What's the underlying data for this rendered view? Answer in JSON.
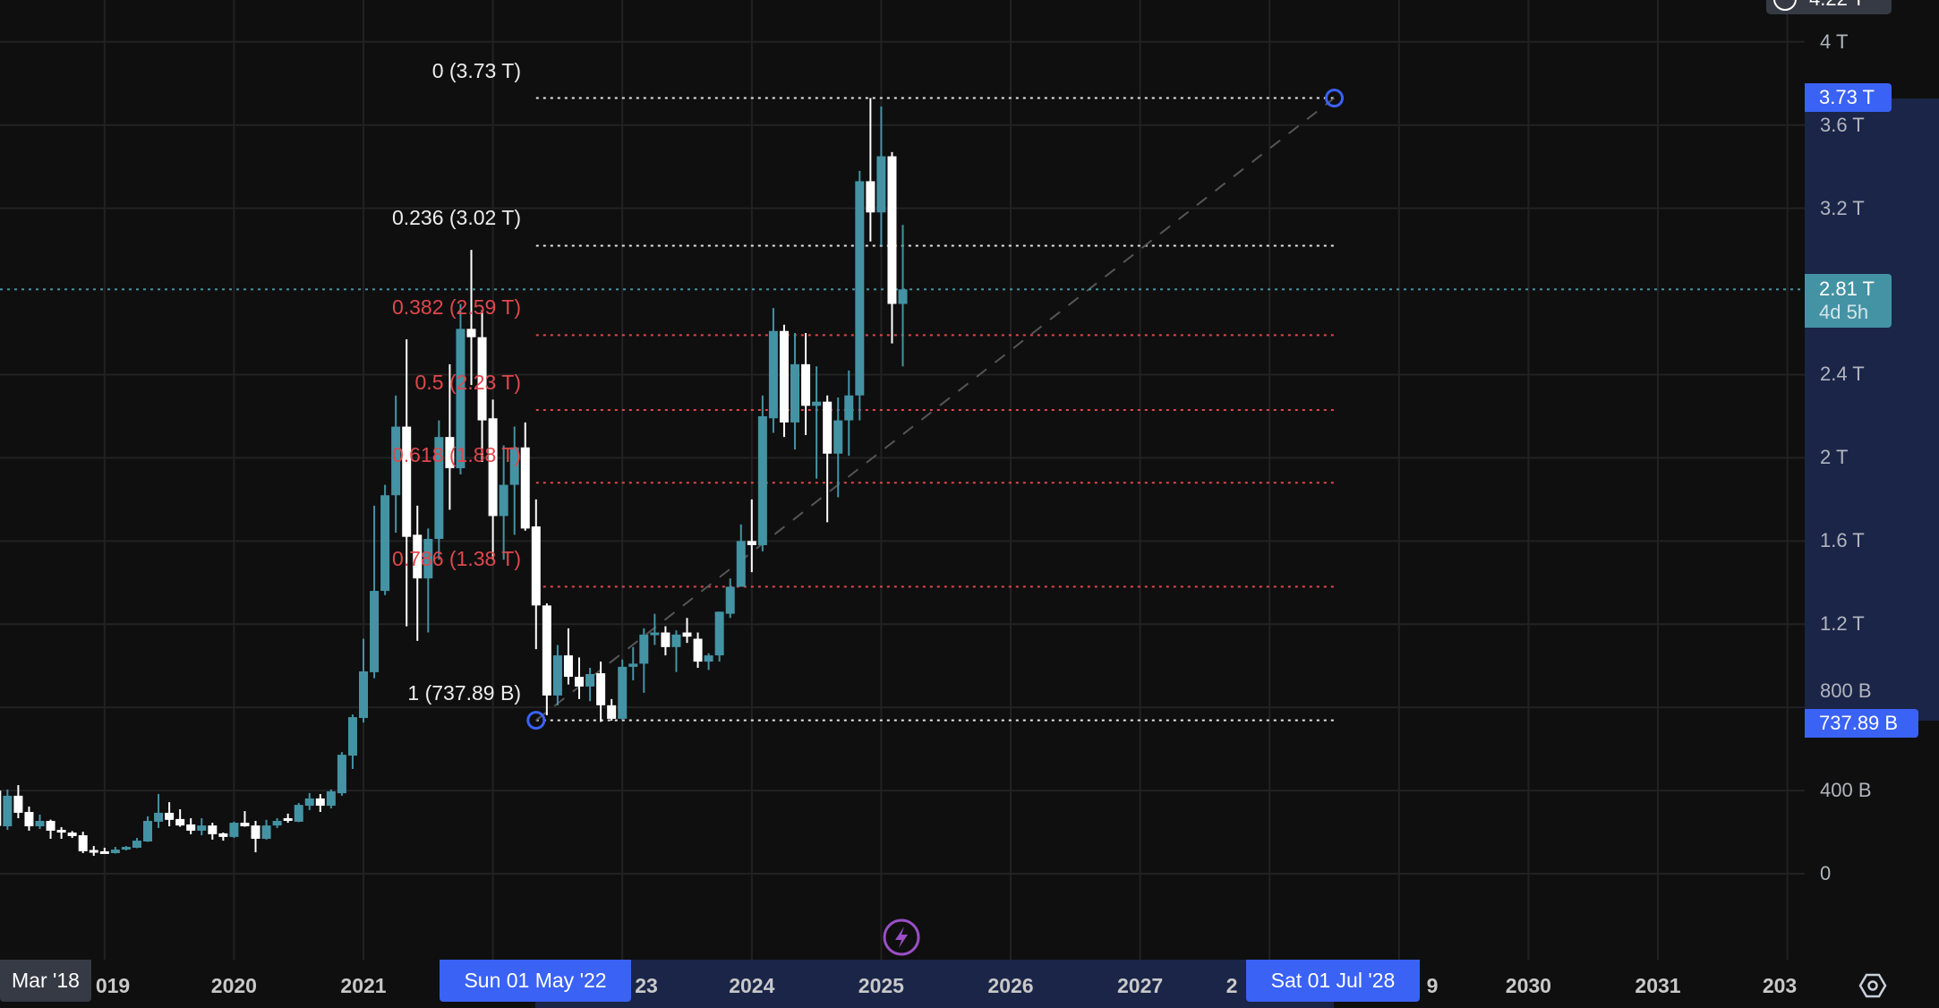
{
  "colors": {
    "background": "#0f0f0f",
    "grid": "#222222",
    "up": "#4493a4",
    "down": "#ffffff",
    "fib_white": "#e6e6e6",
    "fib_red": "#e0474c",
    "accent_blue": "#3a62f5",
    "range_navy": "#1a2548",
    "last_price": "#4493a4",
    "alert_purple": "#9a4fc6"
  },
  "header": {
    "top_partial_label": "4.22 T",
    "top_icon": "clock-icon"
  },
  "price_axis": {
    "ticks": [
      "4 T",
      "3.6 T",
      "3.2 T",
      "2.4 T",
      "2 T",
      "1.6 T",
      "1.2 T",
      "800 B",
      "400 B",
      "0"
    ],
    "tick_values": [
      4,
      3.6,
      3.2,
      2.4,
      2,
      1.6,
      1.2,
      0.8,
      0.4,
      0
    ],
    "high_marker": {
      "label": "3.73 T",
      "value": 3.73
    },
    "low_marker": {
      "label": "737.89 B",
      "value": 0.73789
    },
    "last_price": {
      "label": "2.81 T",
      "countdown": "4d 5h",
      "value": 2.81
    }
  },
  "time_axis": {
    "ticks": [
      {
        "year": 2019,
        "label": "019"
      },
      {
        "year": 2020,
        "label": "2020"
      },
      {
        "year": 2021,
        "label": "2021"
      },
      {
        "year": 2023,
        "label": "23"
      },
      {
        "year": 2024,
        "label": "2024"
      },
      {
        "year": 2025,
        "label": "2025"
      },
      {
        "year": 2026,
        "label": "2026"
      },
      {
        "year": 2027,
        "label": "2027"
      },
      {
        "year": 2028,
        "label": "2"
      },
      {
        "year": 2029,
        "label": "9"
      },
      {
        "year": 2030,
        "label": "2030"
      },
      {
        "year": 2031,
        "label": "2031"
      },
      {
        "year": 2032,
        "label": "203"
      }
    ],
    "cursor_label": "Mar '18",
    "range_start_label": "Sun 01 May '22",
    "range_end_label": "Sat 01 Jul '28",
    "settings_icon": "settings-hexagon-icon"
  },
  "alert_icon": "lightning-icon",
  "chart_data": {
    "type": "candlestick",
    "interval": "monthly",
    "unit": "T",
    "ylim": [
      0,
      4.22
    ],
    "grid": true,
    "columns": [
      "month",
      "open",
      "high",
      "low",
      "close"
    ],
    "candles": [
      [
        "2018-03",
        0.4,
        0.44,
        0.22,
        0.23
      ],
      [
        "2018-04",
        0.228,
        0.405,
        0.211,
        0.375
      ],
      [
        "2018-05",
        0.375,
        0.426,
        0.267,
        0.293
      ],
      [
        "2018-06",
        0.297,
        0.323,
        0.207,
        0.228
      ],
      [
        "2018-07",
        0.228,
        0.284,
        0.215,
        0.254
      ],
      [
        "2018-08",
        0.254,
        0.26,
        0.168,
        0.207
      ],
      [
        "2018-09",
        0.211,
        0.224,
        0.168,
        0.207
      ],
      [
        "2018-10",
        0.198,
        0.205,
        0.172,
        0.181
      ],
      [
        "2018-11",
        0.185,
        0.202,
        0.099,
        0.108
      ],
      [
        "2018-12",
        0.114,
        0.133,
        0.086,
        0.11
      ],
      [
        "2019-01",
        0.108,
        0.125,
        0.097,
        0.099
      ],
      [
        "2019-02",
        0.099,
        0.129,
        0.097,
        0.116
      ],
      [
        "2019-03",
        0.116,
        0.133,
        0.112,
        0.129
      ],
      [
        "2019-04",
        0.125,
        0.172,
        0.123,
        0.159
      ],
      [
        "2019-05",
        0.155,
        0.276,
        0.153,
        0.254
      ],
      [
        "2019-06",
        0.25,
        0.383,
        0.22,
        0.293
      ],
      [
        "2019-07",
        0.293,
        0.344,
        0.228,
        0.259
      ],
      [
        "2019-08",
        0.263,
        0.31,
        0.226,
        0.232
      ],
      [
        "2019-09",
        0.237,
        0.267,
        0.19,
        0.207
      ],
      [
        "2019-10",
        0.207,
        0.267,
        0.185,
        0.232
      ],
      [
        "2019-11",
        0.232,
        0.245,
        0.164,
        0.19
      ],
      [
        "2019-12",
        0.194,
        0.198,
        0.159,
        0.177
      ],
      [
        "2020-01",
        0.177,
        0.25,
        0.172,
        0.245
      ],
      [
        "2020-02",
        0.245,
        0.301,
        0.226,
        0.228
      ],
      [
        "2020-03",
        0.232,
        0.254,
        0.103,
        0.168
      ],
      [
        "2020-04",
        0.168,
        0.259,
        0.164,
        0.232
      ],
      [
        "2020-05",
        0.232,
        0.267,
        0.22,
        0.254
      ],
      [
        "2020-06",
        0.267,
        0.289,
        0.245,
        0.263
      ],
      [
        "2020-07",
        0.25,
        0.34,
        0.248,
        0.331
      ],
      [
        "2020-08",
        0.327,
        0.388,
        0.306,
        0.362
      ],
      [
        "2020-09",
        0.362,
        0.383,
        0.297,
        0.327
      ],
      [
        "2020-10",
        0.327,
        0.405,
        0.314,
        0.396
      ],
      [
        "2020-11",
        0.387,
        0.585,
        0.375,
        0.572
      ],
      [
        "2020-12",
        0.568,
        0.766,
        0.504,
        0.753
      ],
      [
        "2021-01",
        0.749,
        1.13,
        0.727,
        0.973
      ],
      [
        "2021-02",
        0.969,
        1.77,
        0.94,
        1.36
      ],
      [
        "2021-03",
        1.36,
        1.87,
        1.34,
        1.82
      ],
      [
        "2021-04",
        1.82,
        2.3,
        1.64,
        2.15
      ],
      [
        "2021-05",
        2.15,
        2.57,
        1.19,
        1.62
      ],
      [
        "2021-06",
        1.63,
        1.77,
        1.12,
        1.42
      ],
      [
        "2021-07",
        1.42,
        1.66,
        1.16,
        1.61
      ],
      [
        "2021-08",
        1.61,
        2.18,
        1.51,
        2.1
      ],
      [
        "2021-09",
        2.1,
        2.45,
        1.75,
        1.95
      ],
      [
        "2021-10",
        1.95,
        2.74,
        1.92,
        2.62
      ],
      [
        "2021-11",
        2.62,
        3.0,
        2.35,
        2.58
      ],
      [
        "2021-12",
        2.58,
        2.71,
        1.98,
        2.18
      ],
      [
        "2022-01",
        2.19,
        2.28,
        1.51,
        1.72
      ],
      [
        "2022-02",
        1.72,
        2.06,
        1.51,
        1.87
      ],
      [
        "2022-03",
        1.87,
        2.15,
        1.63,
        2.05
      ],
      [
        "2022-04",
        2.05,
        2.17,
        1.65,
        1.66
      ],
      [
        "2022-05",
        1.67,
        1.8,
        1.08,
        1.29
      ],
      [
        "2022-06",
        1.29,
        1.3,
        0.762,
        0.857
      ],
      [
        "2022-07",
        0.857,
        1.1,
        0.81,
        1.05
      ],
      [
        "2022-08",
        1.05,
        1.18,
        0.91,
        0.947
      ],
      [
        "2022-09",
        0.947,
        1.04,
        0.84,
        0.9
      ],
      [
        "2022-10",
        0.9,
        0.99,
        0.83,
        0.96
      ],
      [
        "2022-11",
        0.964,
        1.02,
        0.73,
        0.81
      ],
      [
        "2022-12",
        0.81,
        0.84,
        0.736,
        0.745
      ],
      [
        "2023-01",
        0.745,
        1.03,
        0.74,
        0.995
      ],
      [
        "2023-02",
        0.995,
        1.09,
        0.93,
        1.01
      ],
      [
        "2023-03",
        1.01,
        1.18,
        0.87,
        1.15
      ],
      [
        "2023-04",
        1.15,
        1.25,
        1.1,
        1.16
      ],
      [
        "2023-05",
        1.16,
        1.19,
        1.05,
        1.09
      ],
      [
        "2023-06",
        1.09,
        1.17,
        0.97,
        1.15
      ],
      [
        "2023-07",
        1.16,
        1.23,
        1.11,
        1.14
      ],
      [
        "2023-08",
        1.13,
        1.16,
        0.99,
        1.02
      ],
      [
        "2023-09",
        1.02,
        1.06,
        0.98,
        1.05
      ],
      [
        "2023-10",
        1.05,
        1.26,
        1.02,
        1.26
      ],
      [
        "2023-11",
        1.25,
        1.42,
        1.23,
        1.38
      ],
      [
        "2023-12",
        1.38,
        1.68,
        1.38,
        1.6
      ],
      [
        "2024-01",
        1.6,
        1.8,
        1.45,
        1.58
      ],
      [
        "2024-02",
        1.58,
        2.3,
        1.55,
        2.2
      ],
      [
        "2024-03",
        2.19,
        2.72,
        2.12,
        2.61
      ],
      [
        "2024-04",
        2.61,
        2.64,
        2.1,
        2.17
      ],
      [
        "2024-05",
        2.17,
        2.6,
        2.04,
        2.45
      ],
      [
        "2024-06",
        2.45,
        2.6,
        2.11,
        2.25
      ],
      [
        "2024-07",
        2.25,
        2.44,
        1.9,
        2.27
      ],
      [
        "2024-08",
        2.27,
        2.3,
        1.69,
        2.02
      ],
      [
        "2024-09",
        2.02,
        2.29,
        1.81,
        2.18
      ],
      [
        "2024-10",
        2.18,
        2.42,
        2.01,
        2.3
      ],
      [
        "2024-11",
        2.3,
        3.38,
        2.18,
        3.33
      ],
      [
        "2024-12",
        3.33,
        3.73,
        3.04,
        3.18
      ],
      [
        "2025-01",
        3.18,
        3.69,
        3.02,
        3.45
      ],
      [
        "2025-02",
        3.45,
        3.47,
        2.55,
        2.74
      ],
      [
        "2025-03",
        2.74,
        3.12,
        2.44,
        2.81
      ]
    ],
    "fibonacci": {
      "start": {
        "date": "2022-05",
        "value": 0.73789
      },
      "end": {
        "date": "2028-07",
        "value": 3.73
      },
      "levels": [
        {
          "ratio": 0,
          "label": "0 (3.73 T)",
          "value": 3.73,
          "color": "#e6e6e6"
        },
        {
          "ratio": 0.236,
          "label": "0.236 (3.02 T)",
          "value": 3.02,
          "color": "#e6e6e6"
        },
        {
          "ratio": 0.382,
          "label": "0.382 (2.59 T)",
          "value": 2.59,
          "color": "#e0474c"
        },
        {
          "ratio": 0.5,
          "label": "0.5 (2.23 T)",
          "value": 2.23,
          "color": "#e0474c"
        },
        {
          "ratio": 0.618,
          "label": "0.618 (1.88 T)",
          "value": 1.88,
          "color": "#e0474c"
        },
        {
          "ratio": 0.786,
          "label": "0.786 (1.38 T)",
          "value": 1.38,
          "color": "#e0474c"
        },
        {
          "ratio": 1,
          "label": "1 (737.89 B)",
          "value": 0.73789,
          "color": "#e6e6e6"
        }
      ]
    }
  }
}
